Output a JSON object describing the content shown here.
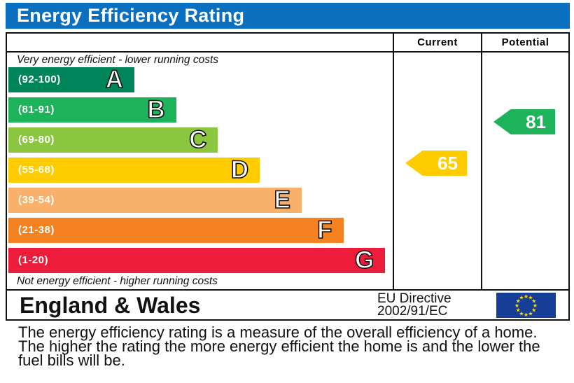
{
  "title": "Energy Efficiency Rating",
  "columns": {
    "current": "Current",
    "potential": "Potential"
  },
  "top_note": "Very energy efficient - lower running costs",
  "bottom_note": "Not energy efficient - higher running costs",
  "footer": {
    "region": "England & Wales",
    "directive_line1": "EU Directive",
    "directive_line2": "2002/91/EC",
    "flag_icon": "eu-flag-icon"
  },
  "description": "The energy efficiency rating is a measure of the overall efficiency of a home. The higher the rating the more energy efficient the home is and the lower the fuel bills will be.",
  "chart_data": {
    "type": "bar",
    "bands": [
      {
        "letter": "A",
        "range": "(92-100)",
        "color": "#00855a"
      },
      {
        "letter": "B",
        "range": "(81-91)",
        "color": "#1db35a"
      },
      {
        "letter": "C",
        "range": "(69-80)",
        "color": "#8cc63f"
      },
      {
        "letter": "D",
        "range": "(55-68)",
        "color": "#ffcc00"
      },
      {
        "letter": "E",
        "range": "(39-54)",
        "color": "#f8b06b"
      },
      {
        "letter": "F",
        "range": "(21-38)",
        "color": "#f58220"
      },
      {
        "letter": "G",
        "range": "(1-20)",
        "color": "#ed1c3a"
      }
    ],
    "current": {
      "value": 65,
      "band": "D",
      "color": "#ffcc00"
    },
    "potential": {
      "value": 81,
      "band": "B",
      "color": "#1db35a"
    }
  }
}
